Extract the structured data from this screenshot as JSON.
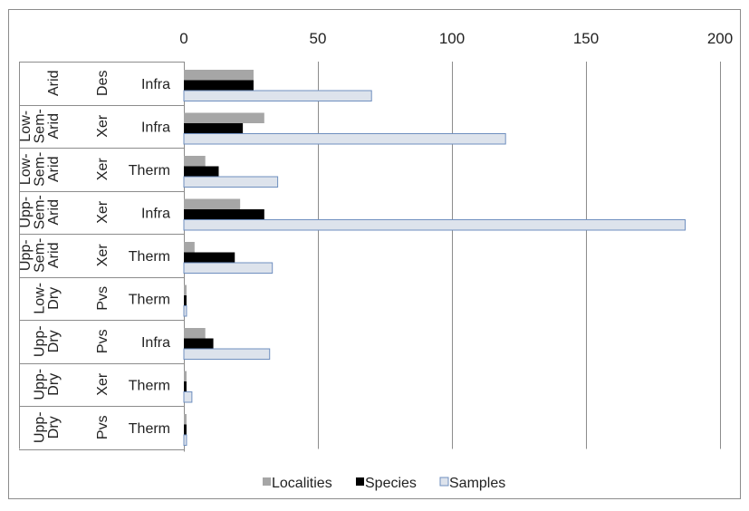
{
  "chart_data": {
    "type": "bar",
    "orientation": "horizontal",
    "x_ticks": [
      "0",
      "50",
      "100",
      "150",
      "200"
    ],
    "xlim": [
      0,
      200
    ],
    "x_axis_position": "top",
    "grid": true,
    "legend_position": "bottom",
    "categories": [
      [
        "Arid",
        "Des",
        "Infra"
      ],
      [
        "Low-Sem-Arid",
        "Xer",
        "Infra"
      ],
      [
        "Low-Sem-Arid",
        "Xer",
        "Therm"
      ],
      [
        "Upp-Sem-Arid",
        "Xer",
        "Infra"
      ],
      [
        "Upp-Sem-Arid",
        "Xer",
        "Therm"
      ],
      [
        "Low-Dry",
        "Pvs",
        "Therm"
      ],
      [
        "Upp-Dry",
        "Pvs",
        "Infra"
      ],
      [
        "Upp-Dry",
        "Xer",
        "Therm"
      ],
      [
        "Upp-Dry",
        "Pvs",
        "Therm"
      ]
    ],
    "series": [
      {
        "name": "Localities",
        "color": "#a6a6a6",
        "values": [
          26,
          30,
          8,
          21,
          4,
          1,
          8,
          1,
          1
        ]
      },
      {
        "name": "Species",
        "color": "#000000",
        "values": [
          26,
          22,
          13,
          30,
          19,
          1,
          11,
          1,
          1
        ]
      },
      {
        "name": "Samples",
        "color": "#dde3ec",
        "stroke": "#6f8fbf",
        "values": [
          70,
          120,
          35,
          187,
          33,
          1,
          32,
          3,
          1
        ]
      }
    ]
  }
}
